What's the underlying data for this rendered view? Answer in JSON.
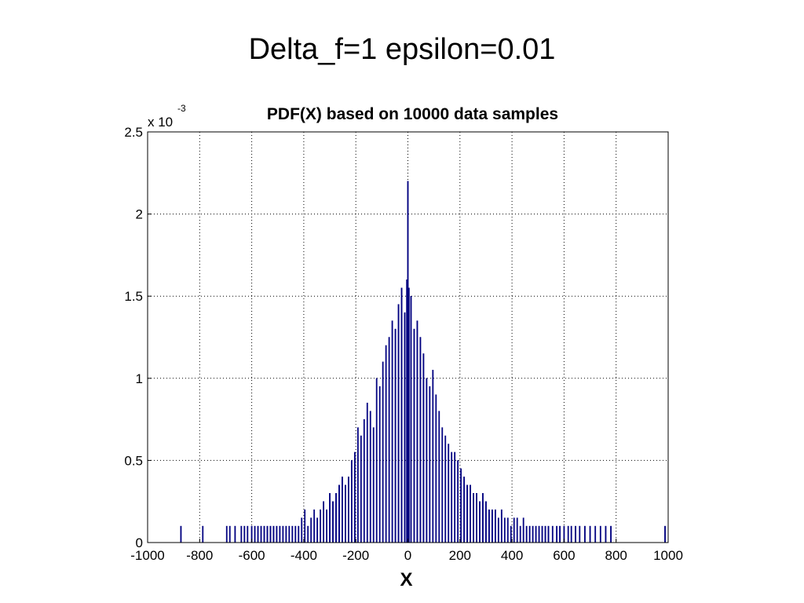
{
  "slide": {
    "title": "Delta_f=1  epsilon=0.01"
  },
  "chart_data": {
    "type": "bar",
    "title": "PDF(X) based on 10000 data samples",
    "xlabel": "X",
    "ylabel": "",
    "y_multiplier_label": {
      "base": "x 10",
      "exponent": "-3"
    },
    "xlim": [
      -1000,
      1000
    ],
    "ylim": [
      0,
      2.5
    ],
    "xticks": [
      "-1000",
      "-800",
      "-600",
      "-400",
      "-200",
      "0",
      "200",
      "400",
      "600",
      "800",
      "1000"
    ],
    "yticks": [
      "0",
      "0.5",
      "1",
      "1.5",
      "2",
      "2.5"
    ],
    "grid": true,
    "bar_color": "#000080",
    "bin_width": 4,
    "series": [
      {
        "x": [
          -872,
          -788,
          -696,
          -684,
          -664,
          -640,
          -628,
          -616,
          -600,
          -588,
          -576,
          -564,
          -552,
          -540,
          -528,
          -516,
          -504,
          -492,
          -480,
          -468,
          -456,
          -444,
          -432,
          -420,
          -408,
          -396,
          -384,
          -372,
          -360,
          -348,
          -336,
          -324,
          -312,
          -300,
          -288,
          -276,
          -264,
          -252,
          -240,
          -228,
          -216,
          -204,
          -192,
          -180,
          -168,
          -156,
          -144,
          -132,
          -120,
          -108,
          -96,
          -84,
          -72,
          -60,
          -48,
          -36,
          -24,
          -12,
          -4,
          0,
          4,
          12,
          24,
          36,
          48,
          60,
          72,
          84,
          96,
          108,
          120,
          132,
          144,
          156,
          168,
          180,
          192,
          204,
          216,
          228,
          240,
          252,
          264,
          276,
          288,
          300,
          312,
          324,
          336,
          348,
          360,
          372,
          384,
          396,
          408,
          420,
          432,
          444,
          456,
          468,
          480,
          492,
          504,
          516,
          528,
          540,
          556,
          572,
          584,
          600,
          616,
          628,
          644,
          660,
          680,
          700,
          720,
          740,
          760,
          780,
          988
        ],
        "values": [
          0.1,
          0.1,
          0.1,
          0.1,
          0.1,
          0.1,
          0.1,
          0.1,
          0.1,
          0.1,
          0.1,
          0.1,
          0.1,
          0.1,
          0.1,
          0.1,
          0.1,
          0.1,
          0.1,
          0.1,
          0.1,
          0.1,
          0.1,
          0.1,
          0.15,
          0.2,
          0.1,
          0.15,
          0.2,
          0.15,
          0.2,
          0.25,
          0.2,
          0.3,
          0.25,
          0.3,
          0.35,
          0.4,
          0.35,
          0.4,
          0.5,
          0.55,
          0.7,
          0.65,
          0.75,
          0.85,
          0.8,
          0.7,
          1.0,
          0.95,
          1.1,
          1.2,
          1.25,
          1.35,
          1.3,
          1.45,
          1.55,
          1.4,
          1.6,
          2.2,
          1.55,
          1.5,
          1.3,
          1.35,
          1.25,
          1.15,
          1.0,
          0.95,
          1.05,
          0.9,
          0.8,
          0.7,
          0.65,
          0.6,
          0.55,
          0.55,
          0.5,
          0.45,
          0.4,
          0.35,
          0.35,
          0.3,
          0.3,
          0.25,
          0.3,
          0.25,
          0.2,
          0.2,
          0.2,
          0.15,
          0.2,
          0.15,
          0.15,
          0.1,
          0.15,
          0.15,
          0.1,
          0.15,
          0.1,
          0.1,
          0.1,
          0.1,
          0.1,
          0.1,
          0.1,
          0.1,
          0.1,
          0.1,
          0.1,
          0.1,
          0.1,
          0.1,
          0.1,
          0.1,
          0.1,
          0.1,
          0.1,
          0.1,
          0.1,
          0.1,
          0.1
        ]
      }
    ]
  }
}
